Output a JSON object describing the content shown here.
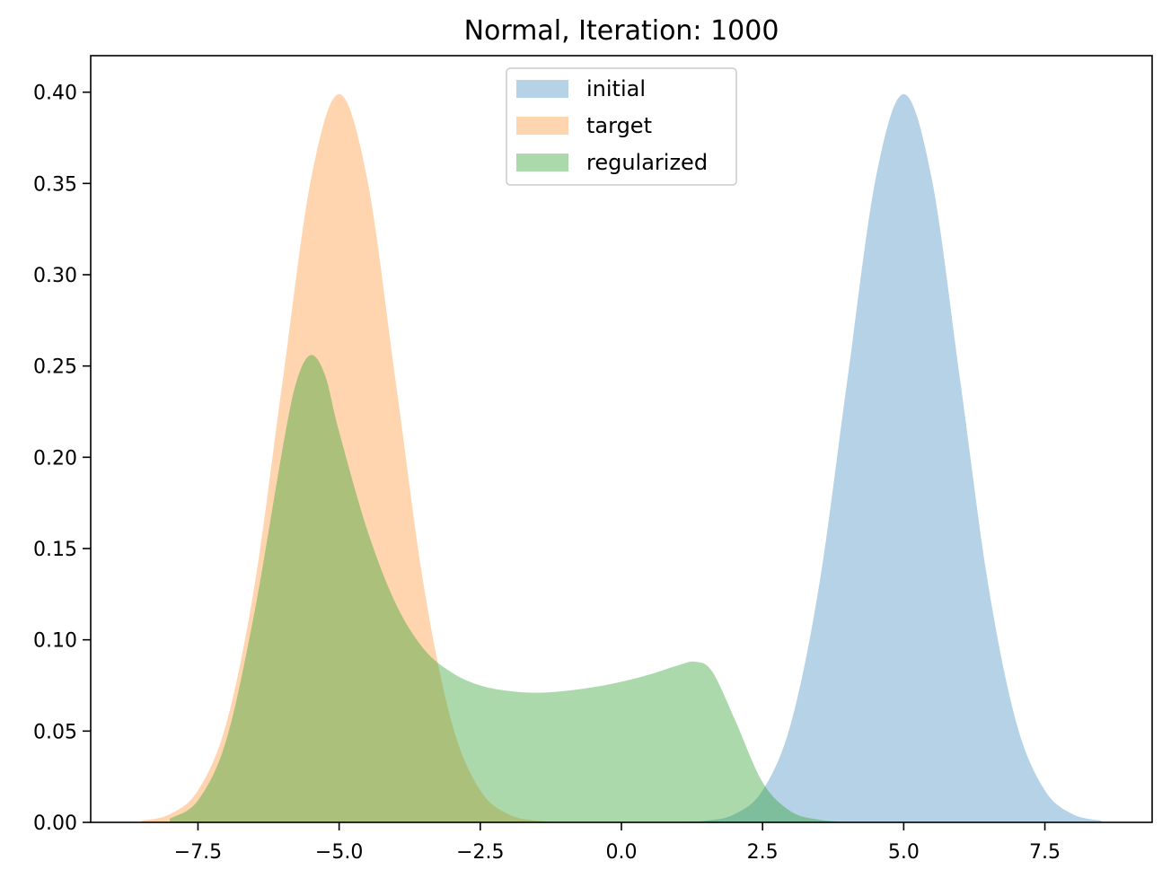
{
  "chart_data": {
    "type": "area",
    "title": "Normal, Iteration: 1000",
    "xlabel": "",
    "ylabel": "",
    "xlim": [
      -9.4,
      9.4
    ],
    "ylim": [
      0,
      0.42
    ],
    "x_ticks": [
      -7.5,
      -5.0,
      -2.5,
      0.0,
      2.5,
      5.0,
      7.5
    ],
    "x_tick_labels": [
      "−7.5",
      "−5.0",
      "−2.5",
      "0.0",
      "2.5",
      "5.0",
      "7.5"
    ],
    "y_ticks": [
      0,
      0.05,
      0.1,
      0.15,
      0.2,
      0.25,
      0.3,
      0.35,
      0.4
    ],
    "y_tick_labels": [
      "0.00",
      "0.05",
      "0.10",
      "0.15",
      "0.20",
      "0.25",
      "0.30",
      "0.35",
      "0.40"
    ],
    "grid": false,
    "legend_position": "top-center",
    "series": [
      {
        "name": "initial",
        "color": "#1f77b4",
        "alpha": 0.33,
        "x": [
          1.0,
          1.5,
          2.0,
          2.5,
          3.0,
          3.5,
          4.0,
          4.5,
          5.0,
          5.5,
          6.0,
          6.5,
          7.0,
          7.5,
          8.0,
          8.5
        ],
        "values": [
          0.0001,
          0.0009,
          0.0044,
          0.0175,
          0.054,
          0.1295,
          0.242,
          0.3521,
          0.3989,
          0.3521,
          0.242,
          0.1295,
          0.054,
          0.0175,
          0.0044,
          0.0009
        ]
      },
      {
        "name": "target",
        "color": "#ff7f0e",
        "alpha": 0.33,
        "x": [
          -8.5,
          -8.0,
          -7.5,
          -7.0,
          -6.5,
          -6.0,
          -5.5,
          -5.0,
          -4.5,
          -4.0,
          -3.5,
          -3.0,
          -2.5,
          -2.0,
          -1.5,
          -1.0
        ],
        "values": [
          0.0009,
          0.0044,
          0.0175,
          0.054,
          0.1295,
          0.242,
          0.3521,
          0.3989,
          0.3521,
          0.242,
          0.1295,
          0.054,
          0.0175,
          0.0044,
          0.0009,
          0.0001
        ]
      },
      {
        "name": "regularized",
        "color": "#2ca02c",
        "alpha": 0.4,
        "x": [
          -8.0,
          -7.5,
          -7.0,
          -6.5,
          -6.0,
          -5.75,
          -5.5,
          -5.25,
          -5.0,
          -4.5,
          -4.0,
          -3.5,
          -3.0,
          -2.5,
          -2.0,
          -1.5,
          -1.0,
          -0.5,
          0.0,
          0.5,
          1.0,
          1.3,
          1.6,
          2.0,
          2.5,
          3.0,
          3.5,
          4.0
        ],
        "values": [
          0.002,
          0.012,
          0.045,
          0.115,
          0.205,
          0.242,
          0.256,
          0.245,
          0.214,
          0.16,
          0.12,
          0.095,
          0.082,
          0.075,
          0.072,
          0.071,
          0.072,
          0.074,
          0.077,
          0.081,
          0.086,
          0.088,
          0.083,
          0.057,
          0.022,
          0.006,
          0.0015,
          0.0002
        ]
      }
    ]
  }
}
